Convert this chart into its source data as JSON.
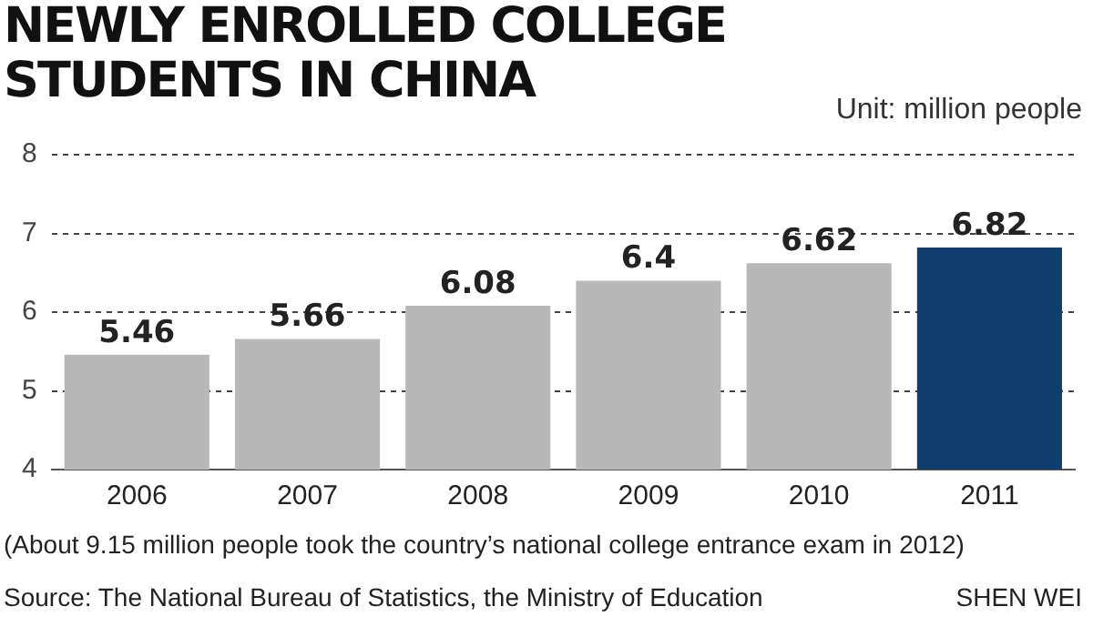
{
  "chart_data": {
    "type": "bar",
    "title": "NEWLY ENROLLED COLLEGE STUDENTS IN CHINA",
    "ylabel": "Unit: million people",
    "categories": [
      "2006",
      "2007",
      "2008",
      "2009",
      "2010",
      "2011"
    ],
    "values": [
      5.46,
      5.66,
      6.08,
      6.4,
      6.62,
      6.82
    ],
    "colors": [
      "#b8b8b8",
      "#b8b8b8",
      "#b8b8b8",
      "#b8b8b8",
      "#b8b8b8",
      "#103f6e"
    ],
    "ylim": [
      4,
      8
    ],
    "yticks": [
      4,
      5,
      6,
      7,
      8
    ],
    "grid": "y",
    "data_labels": true,
    "annotations": [
      "(About 9.15 million people took the country’s national college entrance exam in 2012)",
      "Source: The National Bureau of Statistics, the Ministry of Education",
      "SHEN WEI"
    ]
  }
}
